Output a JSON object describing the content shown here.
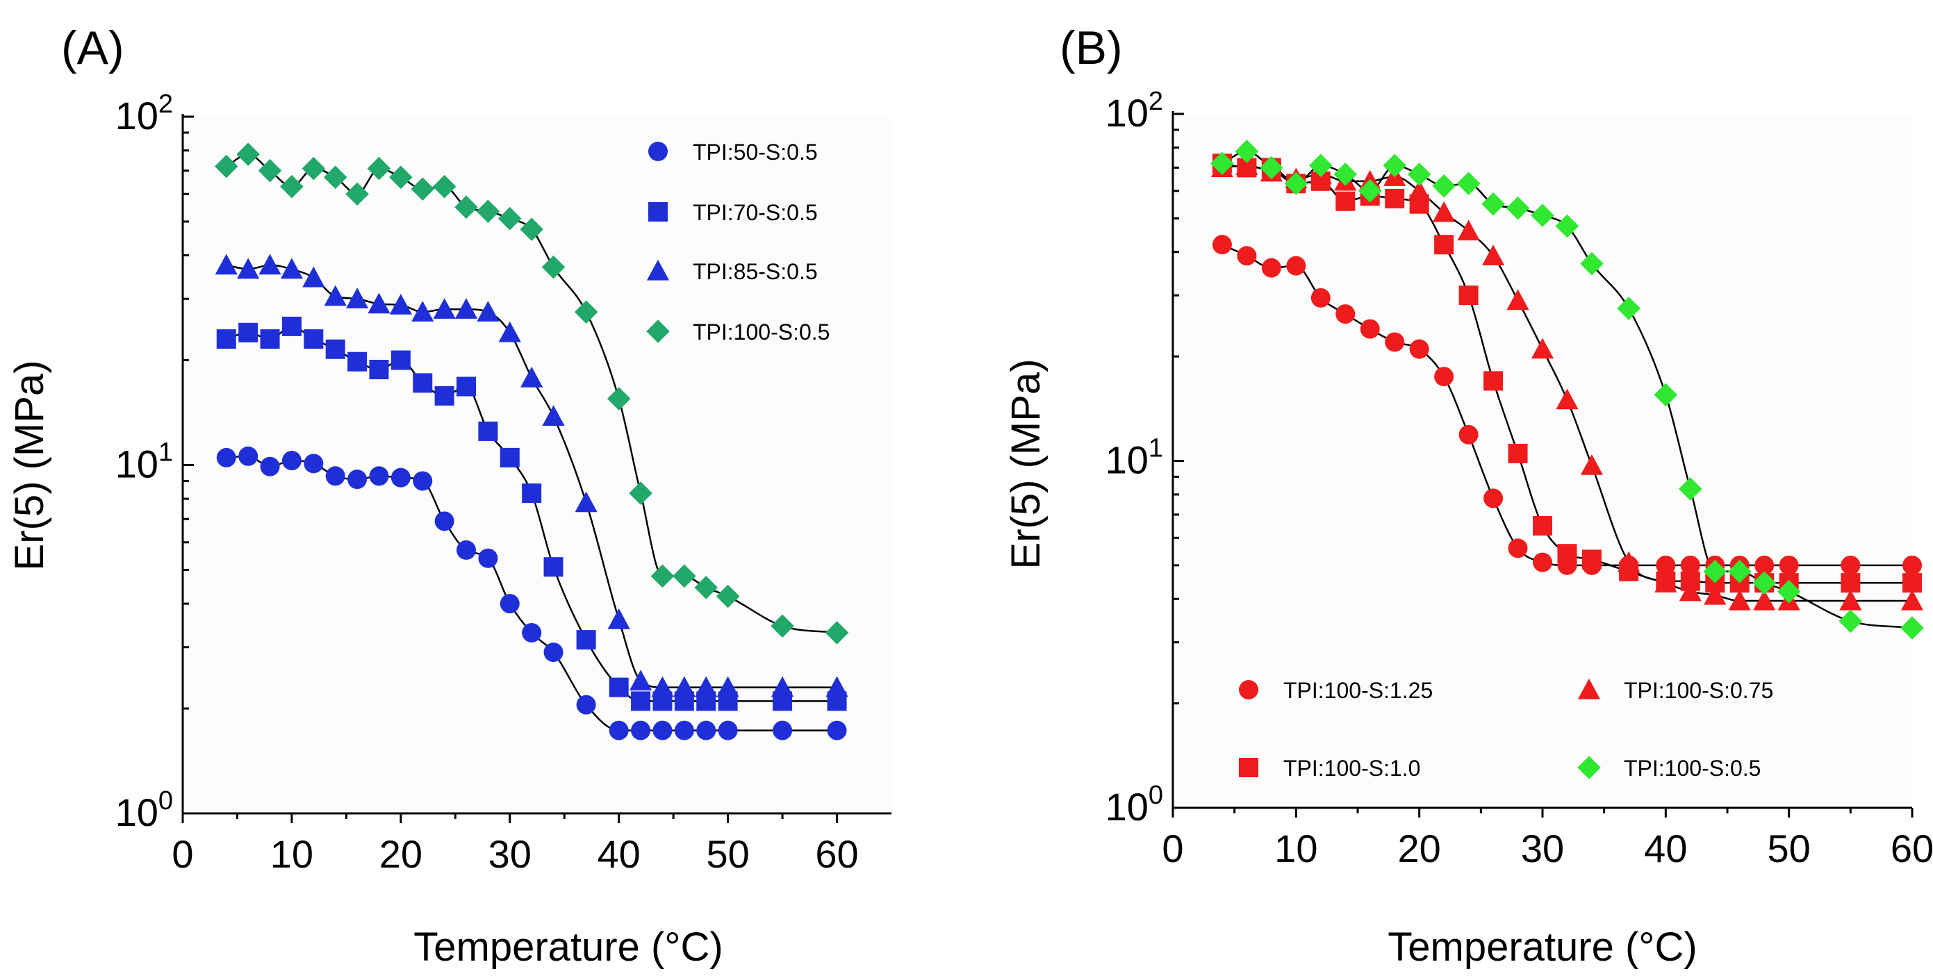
{
  "chart_data": [
    {
      "panel": "(A)",
      "type": "scatter",
      "xlabel": "Temperature (°C)",
      "ylabel": "Er(5) (MPa)",
      "xlim": [
        0,
        65
      ],
      "ylim": [
        1,
        100
      ],
      "yscale": "log",
      "xticks": [
        "0",
        "10",
        "20",
        "30",
        "40",
        "50",
        "60"
      ],
      "yticks": [
        {
          "base": "10",
          "exp": "0"
        },
        {
          "base": "10",
          "exp": "1"
        },
        {
          "base": "10",
          "exp": "2"
        }
      ],
      "legend_position": "top-right",
      "series": [
        {
          "name": "TPI:50-S:0.5",
          "marker": "circle",
          "color": "#1f2fd8",
          "x": [
            4,
            6,
            8,
            10,
            12,
            14,
            16,
            18,
            20,
            22,
            24,
            26,
            28,
            30,
            32,
            34,
            37,
            40,
            42,
            44,
            46,
            48,
            50,
            55,
            60
          ],
          "y": [
            10.5,
            10.6,
            9.9,
            10.3,
            10.1,
            9.3,
            9.1,
            9.3,
            9.2,
            9.0,
            6.9,
            5.7,
            5.4,
            4.0,
            3.3,
            2.9,
            2.05,
            1.73,
            1.73,
            1.73,
            1.73,
            1.73,
            1.73,
            1.73,
            1.73
          ]
        },
        {
          "name": "TPI:70-S:0.5",
          "marker": "square",
          "color": "#1f2fd8",
          "x": [
            4,
            6,
            8,
            10,
            12,
            14,
            16,
            18,
            20,
            22,
            24,
            26,
            28,
            30,
            32,
            34,
            37,
            40,
            42,
            44,
            46,
            48,
            50,
            55,
            60
          ],
          "y": [
            23,
            24,
            23,
            25,
            23,
            21.5,
            19.8,
            18.8,
            20,
            17.2,
            15.8,
            16.8,
            12.5,
            10.5,
            8.3,
            5.1,
            3.15,
            2.3,
            2.1,
            2.1,
            2.1,
            2.1,
            2.1,
            2.1,
            2.1
          ]
        },
        {
          "name": "TPI:85-S:0.5",
          "marker": "triangle",
          "color": "#1f2fd8",
          "x": [
            4,
            6,
            8,
            10,
            12,
            14,
            16,
            18,
            20,
            22,
            24,
            26,
            28,
            30,
            32,
            34,
            37,
            40,
            42,
            44,
            46,
            48,
            50,
            55,
            60
          ],
          "y": [
            37.5,
            36.5,
            37.5,
            36.5,
            34.5,
            30.5,
            30,
            29,
            28.8,
            27.5,
            28,
            28,
            27.5,
            24,
            17.8,
            13.8,
            7.8,
            3.6,
            2.4,
            2.3,
            2.3,
            2.3,
            2.3,
            2.3,
            2.3
          ]
        },
        {
          "name": "TPI:100-S:0.5",
          "marker": "diamond",
          "color": "#22a86a",
          "x": [
            4,
            6,
            8,
            10,
            12,
            14,
            16,
            18,
            20,
            22,
            24,
            26,
            28,
            30,
            32,
            34,
            37,
            40,
            42,
            44,
            46,
            48,
            50,
            55,
            60
          ],
          "y": [
            72,
            78,
            70,
            63,
            71,
            67,
            60,
            71,
            67,
            62,
            63,
            55,
            53.5,
            51,
            47.5,
            37,
            27.5,
            15.5,
            8.3,
            4.8,
            4.8,
            4.45,
            4.2,
            3.45,
            3.3
          ]
        }
      ]
    },
    {
      "panel": "(B)",
      "type": "scatter",
      "xlabel": "Temperature (°C)",
      "ylabel": "Er(5) (MPa)",
      "xlim": [
        0,
        60
      ],
      "ylim": [
        1,
        100
      ],
      "yscale": "log",
      "xticks": [
        "0",
        "10",
        "20",
        "30",
        "40",
        "50",
        "60"
      ],
      "yticks": [
        {
          "base": "10",
          "exp": "0"
        },
        {
          "base": "10",
          "exp": "1"
        },
        {
          "base": "10",
          "exp": "2"
        }
      ],
      "legend_position": "bottom",
      "series": [
        {
          "name": "TPI:100-S:1.25",
          "marker": "circle",
          "color": "#ee1c1c",
          "x": [
            4,
            6,
            8,
            10,
            12,
            14,
            16,
            18,
            20,
            22,
            24,
            26,
            28,
            30,
            32,
            34,
            37,
            40,
            42,
            44,
            46,
            48,
            50,
            55,
            60
          ],
          "y": [
            42,
            39,
            36,
            36.5,
            29.5,
            26.5,
            24,
            22,
            21,
            17.5,
            11.9,
            7.8,
            5.6,
            5.1,
            5.0,
            5.0,
            5.0,
            5.0,
            5.0,
            5.0,
            5.0,
            5.0,
            5.0,
            5.0,
            5.0
          ]
        },
        {
          "name": "TPI:100-S:1.0",
          "marker": "square",
          "color": "#ee1c1c",
          "x": [
            4,
            6,
            8,
            10,
            12,
            14,
            16,
            18,
            20,
            22,
            24,
            26,
            28,
            30,
            32,
            34,
            37,
            40,
            42,
            44,
            46,
            48,
            50,
            55,
            60
          ],
          "y": [
            72,
            70,
            70,
            63,
            64,
            56,
            58,
            57,
            55,
            42,
            30,
            17,
            10.5,
            6.5,
            5.4,
            5.2,
            4.8,
            4.5,
            4.5,
            4.45,
            4.45,
            4.45,
            4.45,
            4.45,
            4.45
          ]
        },
        {
          "name": "TPI:100-S:0.75",
          "marker": "triangle",
          "color": "#ee1c1c",
          "x": [
            4,
            6,
            8,
            10,
            12,
            14,
            16,
            18,
            20,
            22,
            24,
            26,
            28,
            30,
            32,
            34,
            37,
            40,
            42,
            44,
            46,
            48,
            50,
            55,
            60
          ],
          "y": [
            70,
            71,
            68,
            65,
            67,
            64,
            64,
            66,
            60,
            52,
            46,
            39,
            29,
            21,
            15,
            9.7,
            5.1,
            4.45,
            4.2,
            4.1,
            3.95,
            3.95,
            3.95,
            3.95,
            3.95
          ]
        },
        {
          "name": "TPI:100-S:0.5",
          "marker": "diamond",
          "color": "#2fe82f",
          "x": [
            4,
            6,
            8,
            10,
            12,
            14,
            16,
            18,
            20,
            22,
            24,
            26,
            28,
            30,
            32,
            34,
            37,
            40,
            42,
            44,
            46,
            48,
            50,
            55,
            60
          ],
          "y": [
            72,
            78,
            70,
            63,
            71,
            67,
            60,
            71,
            67,
            62,
            63,
            55,
            53.5,
            51,
            47.5,
            37,
            27.5,
            15.5,
            8.3,
            4.8,
            4.8,
            4.45,
            4.2,
            3.45,
            3.3
          ]
        }
      ]
    }
  ]
}
